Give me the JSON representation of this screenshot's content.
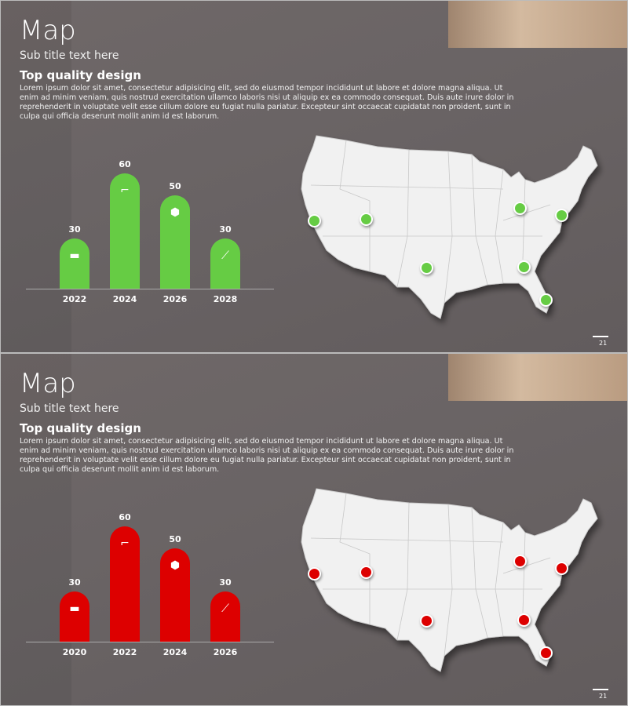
{
  "slides": [
    {
      "title": "Map",
      "subtitle": "Sub title text here",
      "heading": "Top quality design",
      "paragraph": "Lorem ipsum dolor sit amet, consectetur adipisicing elit, sed do eiusmod tempor incididunt ut labore et dolore magna aliqua. Ut enim ad minim veniam, quis nostrud exercitation ullamco laboris nisi ut aliquip ex ea commodo consequat. Duis aute irure dolor in reprehenderit in voluptate velit esse cillum dolore eu fugiat nulla pariatur. Excepteur sint occaecat cupidatat non proident, sunt in culpa qui officia deserunt mollit anim id est laborum.",
      "accent": "#66cc44",
      "page": "21",
      "bars": [
        {
          "year": "2022",
          "value": 30,
          "icon": "paint-roller-icon"
        },
        {
          "year": "2024",
          "value": 60,
          "icon": "drill-icon"
        },
        {
          "year": "2026",
          "value": 50,
          "icon": "bolt-icon"
        },
        {
          "year": "2028",
          "value": 30,
          "icon": "screwdriver-icon"
        }
      ]
    },
    {
      "title": "Map",
      "subtitle": "Sub title text here",
      "heading": "Top quality design",
      "paragraph": "Lorem ipsum dolor sit amet, consectetur adipisicing elit, sed do eiusmod tempor incididunt ut labore et dolore magna aliqua. Ut enim ad minim veniam, quis nostrud exercitation ullamco laboris nisi ut aliquip ex ea commodo consequat. Duis aute irure dolor in reprehenderit in voluptate velit esse cillum dolore eu fugiat nulla pariatur. Excepteur sint occaecat cupidatat non proident, sunt in culpa qui officia deserunt mollit anim id est laborum.",
      "accent": "#dd0000",
      "page": "21",
      "bars": [
        {
          "year": "2020",
          "value": 30,
          "icon": "paint-roller-icon"
        },
        {
          "year": "2022",
          "value": 60,
          "icon": "drill-icon"
        },
        {
          "year": "2024",
          "value": 50,
          "icon": "bolt-icon"
        },
        {
          "year": "2026",
          "value": 30,
          "icon": "screwdriver-icon"
        }
      ]
    }
  ]
}
